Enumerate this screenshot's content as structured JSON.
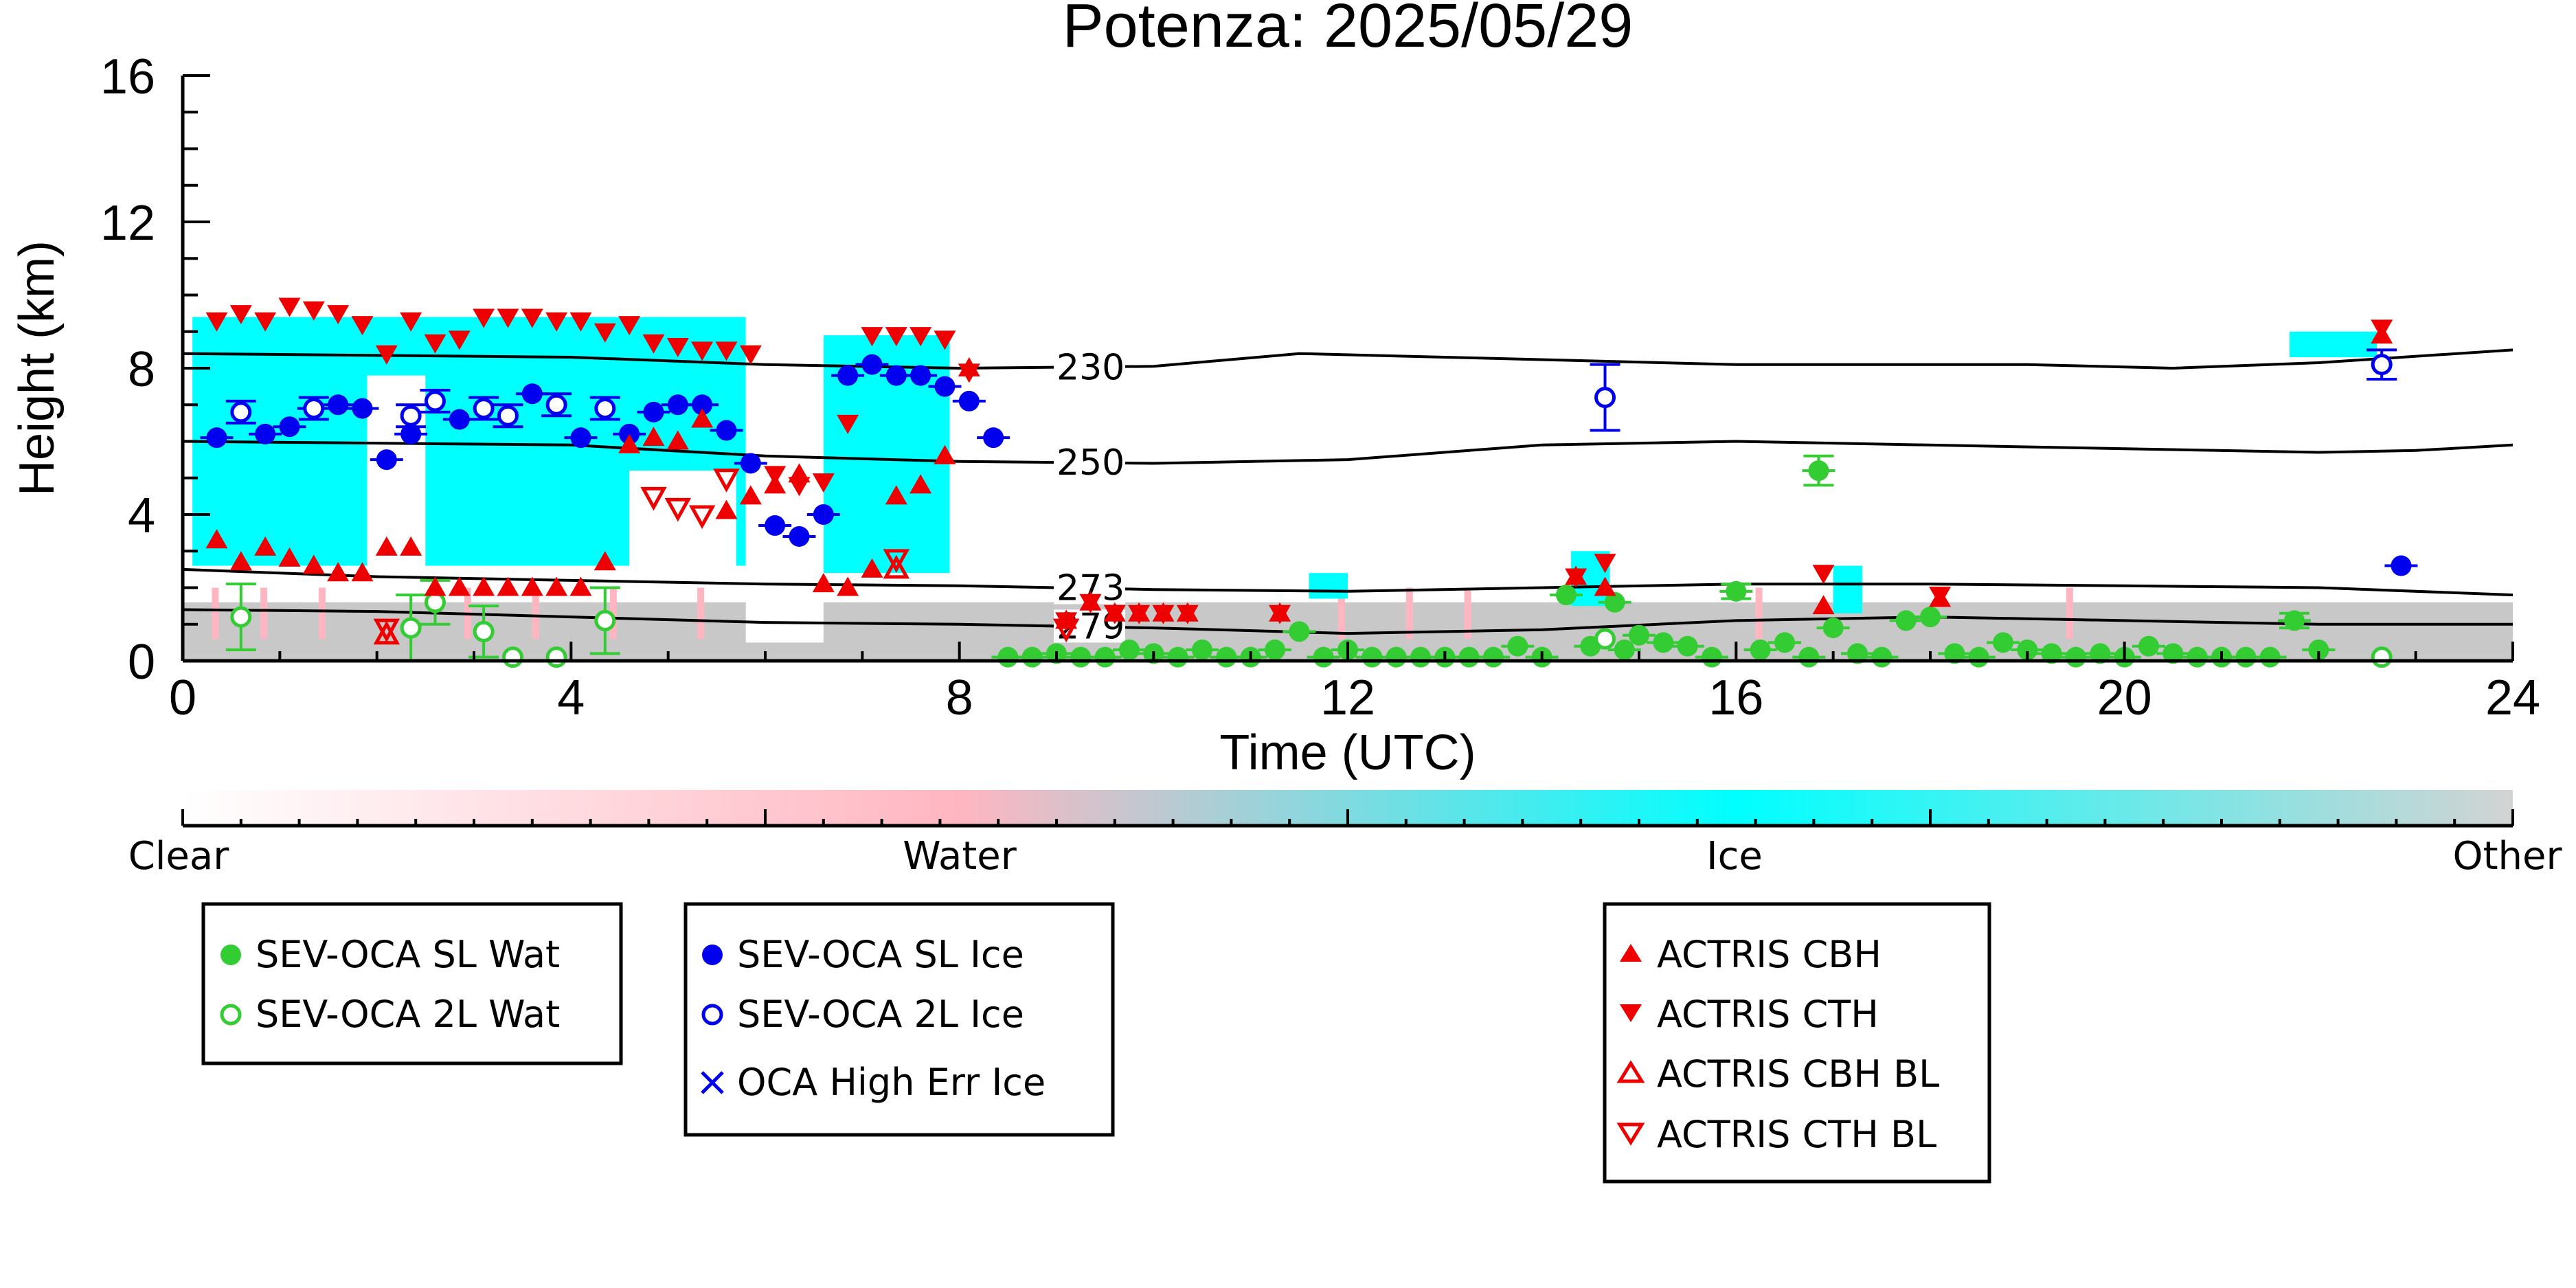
{
  "chart_data": {
    "type": "scatter",
    "title": "Potenza: 2025/05/29",
    "xlabel": "Time (UTC)",
    "ylabel": "Height (km)",
    "xlim": [
      0,
      24
    ],
    "ylim": [
      0,
      16
    ],
    "x_ticks": [
      0,
      4,
      8,
      12,
      16,
      20,
      24
    ],
    "y_ticks": [
      0,
      4,
      8,
      12,
      16
    ],
    "colors": {
      "wat": "#33cc33",
      "ice": "#0000ee",
      "actris": "#ee0000",
      "cyan": "#00ffff",
      "pink": "#ffb6c1",
      "gray": "#c8c8c8"
    },
    "colorbar": {
      "labels": [
        "Clear",
        "Water",
        "Ice",
        "Other"
      ],
      "stops": [
        "#ffffff",
        "#ffb6c1",
        "#00ffff",
        "#d3d3d3"
      ]
    },
    "isotherms": [
      {
        "label": "230",
        "label_x": 9.0,
        "points": [
          [
            0,
            8.4
          ],
          [
            4,
            8.3
          ],
          [
            6,
            8.1
          ],
          [
            8,
            8.0
          ],
          [
            10,
            8.05
          ],
          [
            11.5,
            8.4
          ],
          [
            13,
            8.3
          ],
          [
            16,
            8.1
          ],
          [
            19,
            8.1
          ],
          [
            20.5,
            8.0
          ],
          [
            22,
            8.15
          ],
          [
            24,
            8.5
          ]
        ]
      },
      {
        "label": "250",
        "label_x": 9.0,
        "points": [
          [
            0,
            6.0
          ],
          [
            4,
            5.9
          ],
          [
            6,
            5.6
          ],
          [
            8,
            5.45
          ],
          [
            10,
            5.4
          ],
          [
            12,
            5.5
          ],
          [
            14,
            5.9
          ],
          [
            16,
            6.0
          ],
          [
            20,
            5.8
          ],
          [
            22,
            5.7
          ],
          [
            23,
            5.75
          ],
          [
            24,
            5.9
          ]
        ]
      },
      {
        "label": "273",
        "label_x": 9.0,
        "points": [
          [
            0,
            2.5
          ],
          [
            2,
            2.3
          ],
          [
            4,
            2.2
          ],
          [
            6,
            2.1
          ],
          [
            8,
            2.05
          ],
          [
            10,
            1.95
          ],
          [
            12,
            1.9
          ],
          [
            14,
            2.0
          ],
          [
            16,
            2.1
          ],
          [
            18,
            2.1
          ],
          [
            20,
            2.05
          ],
          [
            22,
            2.0
          ],
          [
            24,
            1.8
          ]
        ]
      },
      {
        "label": "279",
        "label_x": 9.0,
        "points": [
          [
            0,
            1.4
          ],
          [
            2,
            1.35
          ],
          [
            4,
            1.2
          ],
          [
            6,
            1.05
          ],
          [
            8,
            1.0
          ],
          [
            10,
            0.9
          ],
          [
            12,
            0.75
          ],
          [
            14,
            0.85
          ],
          [
            16,
            1.1
          ],
          [
            18,
            1.2
          ],
          [
            20,
            1.1
          ],
          [
            22,
            1.0
          ],
          [
            24,
            1.0
          ]
        ]
      }
    ],
    "cloud_mask": {
      "ice_segments": [
        {
          "x0": 0.1,
          "x1": 5.8,
          "base": 2.6,
          "top": 9.4
        },
        {
          "x0": 6.6,
          "x1": 7.9,
          "base": 2.4,
          "top": 8.9
        },
        {
          "x0": 11.6,
          "x1": 12.0,
          "base": 1.7,
          "top": 2.4
        },
        {
          "x0": 14.3,
          "x1": 14.7,
          "base": 1.5,
          "top": 3.0
        },
        {
          "x0": 17.0,
          "x1": 17.3,
          "base": 1.3,
          "top": 2.6
        },
        {
          "x0": 21.7,
          "x1": 22.6,
          "base": 8.3,
          "top": 9.0
        }
      ],
      "ice_gaps": [
        {
          "x0": 1.9,
          "x1": 2.5,
          "base": 2.4,
          "top": 7.8
        },
        {
          "x0": 4.6,
          "x1": 5.7,
          "base": 2.4,
          "top": 5.2
        },
        {
          "x0": 5.8,
          "x1": 6.6,
          "base": 0.5,
          "top": 9.4
        }
      ],
      "low_layer": {
        "x0": 0.0,
        "x1": 24.0,
        "base": 0.0,
        "top": 1.6
      }
    },
    "series": [
      {
        "name": "SEV-OCA SL Wat",
        "marker": "filled-circle",
        "color": "#33cc33",
        "x": [
          8.5,
          8.75,
          9.0,
          9.25,
          9.5,
          9.75,
          10.0,
          10.25,
          10.5,
          10.75,
          11.0,
          11.25,
          11.5,
          11.75,
          12.0,
          12.25,
          12.5,
          12.75,
          13.0,
          13.25,
          13.5,
          13.75,
          14.0,
          14.25,
          14.5,
          14.75,
          14.85,
          15.0,
          15.25,
          15.5,
          15.75,
          16.0,
          16.25,
          16.5,
          16.75,
          16.85,
          17.0,
          17.25,
          17.5,
          17.75,
          18.0,
          18.25,
          18.5,
          18.75,
          19.0,
          19.25,
          19.5,
          19.75,
          20.0,
          20.25,
          20.5,
          20.75,
          21.0,
          21.25,
          21.5,
          21.75,
          22.0
        ],
        "y": [
          0.1,
          0.1,
          0.2,
          0.1,
          0.1,
          0.3,
          0.2,
          0.1,
          0.3,
          0.1,
          0.1,
          0.3,
          0.8,
          0.1,
          0.3,
          0.1,
          0.1,
          0.1,
          0.1,
          0.1,
          0.1,
          0.4,
          0.1,
          1.8,
          0.4,
          1.6,
          0.3,
          0.7,
          0.5,
          0.4,
          0.1,
          1.9,
          0.3,
          0.5,
          0.1,
          5.2,
          0.9,
          0.2,
          0.1,
          1.1,
          1.2,
          0.2,
          0.1,
          0.5,
          0.3,
          0.2,
          0.1,
          0.2,
          0.1,
          0.4,
          0.2,
          0.1,
          0.1,
          0.1,
          0.1,
          1.1,
          0.3
        ],
        "err": [
          0,
          0,
          0,
          0,
          0,
          0,
          0,
          0,
          0,
          0,
          0,
          0,
          0,
          0,
          0,
          0,
          0,
          0,
          0,
          0,
          0,
          0,
          0,
          0,
          0,
          0,
          0,
          0,
          0,
          0,
          0,
          0.2,
          0,
          0,
          0,
          0.4,
          0,
          0,
          0,
          0,
          0,
          0,
          0,
          0,
          0,
          0,
          0,
          0,
          0,
          0,
          0,
          0,
          0,
          0,
          0,
          0.2,
          0
        ]
      },
      {
        "name": "SEV-OCA 2L Wat",
        "marker": "open-circle",
        "color": "#33cc33",
        "x": [
          0.6,
          2.35,
          2.6,
          3.1,
          3.4,
          3.85,
          4.35,
          14.65,
          22.65
        ],
        "y": [
          1.2,
          0.9,
          1.6,
          0.8,
          0.1,
          0.1,
          1.1,
          0.6,
          0.1
        ],
        "err": [
          0.9,
          0.9,
          0.6,
          0.7,
          0,
          0,
          0.9,
          0,
          0
        ]
      },
      {
        "name": "SEV-OCA SL Ice",
        "marker": "filled-circle",
        "color": "#0000ee",
        "x": [
          0.35,
          0.85,
          1.1,
          1.35,
          1.6,
          1.85,
          2.1,
          2.35,
          2.85,
          3.6,
          4.1,
          4.6,
          4.85,
          5.1,
          5.35,
          5.6,
          5.85,
          6.1,
          6.35,
          6.6,
          6.85,
          7.1,
          7.35,
          7.6,
          7.85,
          8.1,
          8.35,
          22.85
        ],
        "y": [
          6.1,
          6.2,
          6.4,
          6.9,
          7.0,
          6.9,
          5.5,
          6.2,
          6.6,
          7.3,
          6.1,
          6.2,
          6.8,
          7.0,
          7.0,
          6.3,
          5.4,
          3.7,
          3.4,
          4.0,
          7.8,
          8.1,
          7.8,
          7.8,
          7.5,
          7.1,
          6.1,
          2.6
        ]
      },
      {
        "name": "SEV-OCA 2L Ice",
        "marker": "open-circle",
        "color": "#0000ee",
        "x": [
          0.6,
          1.35,
          2.35,
          2.6,
          3.1,
          3.35,
          3.85,
          4.35,
          14.65,
          22.65
        ],
        "y": [
          6.8,
          6.9,
          6.7,
          7.1,
          6.9,
          6.7,
          7.0,
          6.9,
          7.2,
          8.1
        ],
        "err": [
          0.3,
          0.3,
          0.3,
          0.3,
          0.3,
          0.3,
          0.3,
          0.3,
          0.9,
          0.4
        ]
      },
      {
        "name": "OCA High Err Ice",
        "marker": "x",
        "color": "#0000ee",
        "x": [],
        "y": []
      },
      {
        "name": "ACTRIS CBH",
        "marker": "triangle-up",
        "color": "#ee0000",
        "x": [
          0.35,
          0.6,
          0.85,
          1.1,
          1.35,
          1.6,
          1.85,
          2.1,
          2.35,
          2.6,
          2.85,
          3.1,
          3.35,
          3.6,
          3.85,
          4.1,
          4.35,
          4.6,
          4.85,
          5.1,
          5.35,
          5.6,
          5.85,
          6.1,
          6.35,
          6.6,
          6.85,
          7.1,
          7.35,
          7.6,
          7.85,
          8.1,
          9.1,
          9.35,
          9.6,
          9.85,
          10.1,
          10.35,
          11.3,
          14.35,
          14.65,
          16.9,
          18.1,
          22.65
        ],
        "y": [
          3.3,
          2.7,
          3.1,
          2.8,
          2.6,
          2.4,
          2.4,
          3.1,
          3.1,
          2.0,
          2.0,
          2.0,
          2.0,
          2.0,
          2.0,
          2.0,
          2.7,
          5.9,
          6.1,
          6.0,
          6.6,
          4.1,
          4.5,
          4.8,
          5.1,
          2.1,
          2.0,
          2.5,
          4.5,
          4.8,
          5.6,
          8.0,
          1.1,
          1.6,
          1.3,
          1.3,
          1.3,
          1.3,
          1.3,
          2.3,
          2.0,
          1.5,
          1.7,
          8.9
        ]
      },
      {
        "name": "ACTRIS CTH",
        "marker": "triangle-down",
        "color": "#ee0000",
        "x": [
          0.35,
          0.6,
          0.85,
          1.1,
          1.35,
          1.6,
          1.85,
          2.1,
          2.35,
          2.6,
          2.85,
          3.1,
          3.35,
          3.6,
          3.85,
          4.1,
          4.35,
          4.6,
          4.85,
          5.1,
          5.35,
          5.6,
          5.85,
          6.1,
          6.35,
          6.6,
          6.85,
          7.1,
          7.35,
          7.6,
          7.85,
          8.1,
          9.1,
          9.35,
          9.6,
          9.85,
          10.1,
          10.35,
          11.3,
          14.35,
          14.65,
          16.9,
          18.1,
          22.65
        ],
        "y": [
          9.3,
          9.5,
          9.3,
          9.7,
          9.6,
          9.5,
          9.2,
          8.4,
          9.3,
          8.7,
          8.8,
          9.4,
          9.4,
          9.4,
          9.3,
          9.3,
          9.0,
          9.2,
          8.7,
          8.6,
          8.5,
          8.5,
          8.4,
          5.1,
          4.8,
          4.9,
          6.5,
          8.9,
          8.9,
          8.9,
          8.8,
          7.9,
          1.1,
          1.6,
          1.3,
          1.3,
          1.3,
          1.3,
          1.3,
          2.3,
          2.7,
          2.4,
          1.8,
          9.1
        ]
      },
      {
        "name": "ACTRIS CBH BL",
        "marker": "open-triangle-up",
        "color": "#ee0000",
        "x": [
          2.1,
          7.35
        ],
        "y": [
          0.7,
          2.5
        ]
      },
      {
        "name": "ACTRIS CTH BL",
        "marker": "open-triangle-down",
        "color": "#ee0000",
        "x": [
          2.1,
          4.85,
          5.1,
          5.35,
          5.6,
          7.35,
          9.1
        ],
        "y": [
          0.9,
          4.5,
          4.2,
          4.0,
          5.0,
          2.8,
          0.9
        ]
      }
    ],
    "legend_groups": [
      [
        "SEV-OCA SL Wat",
        "SEV-OCA 2L Wat"
      ],
      [
        "SEV-OCA SL Ice",
        "SEV-OCA 2L Ice",
        "OCA High Err Ice"
      ],
      [
        "ACTRIS CBH",
        "ACTRIS CTH",
        "ACTRIS CBH BL",
        "ACTRIS CTH BL"
      ]
    ]
  }
}
